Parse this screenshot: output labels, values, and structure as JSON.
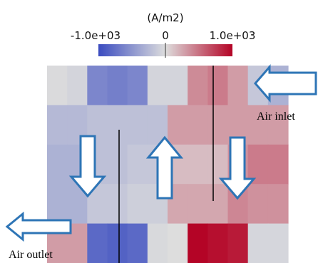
{
  "colorbar": {
    "unit": "(A/m2)",
    "min_label": "-1.0e+03",
    "mid_label": "0",
    "max_label": "1.0e+03",
    "min": -1000,
    "max": 1000,
    "colors": [
      "#3b4cc0",
      "#dddddd",
      "#b40426"
    ]
  },
  "labels": {
    "inlet": "Air inlet",
    "outlet": "Air outlet"
  },
  "arrow_color": "#2e75b6",
  "heatmap": {
    "rows": 5,
    "cols": 12,
    "values": [
      [
        -20,
        -60,
        -600,
        -650,
        -600,
        -60,
        -60,
        380,
        450,
        300,
        -150,
        -300
      ],
      [
        -250,
        -250,
        -200,
        -200,
        -200,
        -200,
        300,
        300,
        300,
        300,
        300,
        300
      ],
      [
        -300,
        -300,
        -200,
        -200,
        -150,
        -150,
        150,
        150,
        150,
        350,
        450,
        450
      ],
      [
        -300,
        -300,
        -150,
        -150,
        -100,
        -100,
        250,
        250,
        250,
        400,
        350,
        350
      ],
      [
        300,
        300,
        -800,
        -850,
        -800,
        -30,
        0,
        1000,
        950,
        900,
        -50,
        -50
      ]
    ]
  }
}
